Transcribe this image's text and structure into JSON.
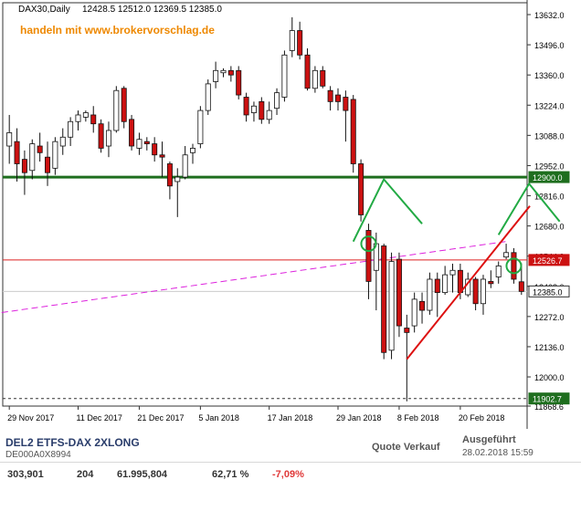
{
  "header": {
    "instrument": "DAX30,Daily",
    "ohlc": "12428.5 12512.0 12369.5 12385.0",
    "watermark": "handeln mit www.brokervorschlag.de"
  },
  "chart_data": {
    "type": "candlestick",
    "ylim": [
      11868.6,
      13700
    ],
    "y_ticks": [
      "13632.0",
      "13496.0",
      "13360.0",
      "13224.0",
      "13088.0",
      "12952.0",
      "12816.0",
      "12680.0",
      "12544.0",
      "12408.0",
      "12272.0",
      "12136.0",
      "12000.0",
      "11868.6"
    ],
    "x_tick_labels": [
      {
        "i": 0,
        "label": "29 Nov 2017"
      },
      {
        "i": 9,
        "label": "11 Dec 2017"
      },
      {
        "i": 17,
        "label": "21 Dec 2017"
      },
      {
        "i": 25,
        "label": "5 Jan 2018"
      },
      {
        "i": 34,
        "label": "17 Jan 2018"
      },
      {
        "i": 43,
        "label": "29 Jan 2018"
      },
      {
        "i": 51,
        "label": "8 Feb 2018"
      },
      {
        "i": 59,
        "label": "20 Feb 2018"
      }
    ],
    "price_labels": [
      {
        "value": 12900.0,
        "text": "12900.0",
        "bg": "#1e6e1e"
      },
      {
        "value": 12526.7,
        "text": "12526.7",
        "bg": "#cc1111"
      },
      {
        "value": 12385.0,
        "text": "12385.0",
        "bg": "#ffffff"
      },
      {
        "value": 11902.7,
        "text": "11902.7",
        "bg": "#1e6e1e"
      }
    ],
    "candles": [
      {
        "o": 13040,
        "h": 13180,
        "l": 12960,
        "c": 13100
      },
      {
        "o": 13060,
        "h": 13120,
        "l": 12880,
        "c": 12960
      },
      {
        "o": 12980,
        "h": 13020,
        "l": 12820,
        "c": 12920
      },
      {
        "o": 12930,
        "h": 13070,
        "l": 12890,
        "c": 13050
      },
      {
        "o": 13040,
        "h": 13100,
        "l": 12970,
        "c": 13010
      },
      {
        "o": 12990,
        "h": 13060,
        "l": 12860,
        "c": 12920
      },
      {
        "o": 12940,
        "h": 13080,
        "l": 12910,
        "c": 13060
      },
      {
        "o": 13040,
        "h": 13120,
        "l": 13000,
        "c": 13080
      },
      {
        "o": 13080,
        "h": 13170,
        "l": 13040,
        "c": 13150
      },
      {
        "o": 13150,
        "h": 13200,
        "l": 13110,
        "c": 13180
      },
      {
        "o": 13170,
        "h": 13200,
        "l": 13150,
        "c": 13190
      },
      {
        "o": 13180,
        "h": 13220,
        "l": 13100,
        "c": 13140
      },
      {
        "o": 13140,
        "h": 13160,
        "l": 13010,
        "c": 13030
      },
      {
        "o": 13040,
        "h": 13150,
        "l": 12990,
        "c": 13110
      },
      {
        "o": 13110,
        "h": 13310,
        "l": 13100,
        "c": 13290
      },
      {
        "o": 13300,
        "h": 13310,
        "l": 13120,
        "c": 13150
      },
      {
        "o": 13160,
        "h": 13180,
        "l": 13020,
        "c": 13040
      },
      {
        "o": 13030,
        "h": 13100,
        "l": 13000,
        "c": 13070
      },
      {
        "o": 13060,
        "h": 13080,
        "l": 13020,
        "c": 13050
      },
      {
        "o": 13050,
        "h": 13080,
        "l": 12970,
        "c": 13000
      },
      {
        "o": 13000,
        "h": 13060,
        "l": 12900,
        "c": 12990
      },
      {
        "o": 12960,
        "h": 12970,
        "l": 12800,
        "c": 12860
      },
      {
        "o": 12880,
        "h": 12940,
        "l": 12720,
        "c": 12900
      },
      {
        "o": 12900,
        "h": 13040,
        "l": 12890,
        "c": 13000
      },
      {
        "o": 13010,
        "h": 13050,
        "l": 12960,
        "c": 13030
      },
      {
        "o": 13050,
        "h": 13220,
        "l": 13030,
        "c": 13200
      },
      {
        "o": 13200,
        "h": 13340,
        "l": 13180,
        "c": 13320
      },
      {
        "o": 13330,
        "h": 13420,
        "l": 13300,
        "c": 13380
      },
      {
        "o": 13370,
        "h": 13390,
        "l": 13350,
        "c": 13380
      },
      {
        "o": 13380,
        "h": 13400,
        "l": 13330,
        "c": 13360
      },
      {
        "o": 13380,
        "h": 13400,
        "l": 13250,
        "c": 13270
      },
      {
        "o": 13260,
        "h": 13280,
        "l": 13150,
        "c": 13180
      },
      {
        "o": 13190,
        "h": 13240,
        "l": 13150,
        "c": 13220
      },
      {
        "o": 13240,
        "h": 13260,
        "l": 13140,
        "c": 13160
      },
      {
        "o": 13160,
        "h": 13240,
        "l": 13140,
        "c": 13200
      },
      {
        "o": 13210,
        "h": 13300,
        "l": 13180,
        "c": 13280
      },
      {
        "o": 13260,
        "h": 13470,
        "l": 13240,
        "c": 13450
      },
      {
        "o": 13470,
        "h": 13620,
        "l": 13440,
        "c": 13560
      },
      {
        "o": 13560,
        "h": 13600,
        "l": 13430,
        "c": 13450
      },
      {
        "o": 13450,
        "h": 13480,
        "l": 13290,
        "c": 13300
      },
      {
        "o": 13300,
        "h": 13400,
        "l": 13280,
        "c": 13380
      },
      {
        "o": 13380,
        "h": 13400,
        "l": 13300,
        "c": 13310
      },
      {
        "o": 13290,
        "h": 13310,
        "l": 13200,
        "c": 13240
      },
      {
        "o": 13270,
        "h": 13300,
        "l": 13200,
        "c": 13240
      },
      {
        "o": 13260,
        "h": 13290,
        "l": 13060,
        "c": 13200
      },
      {
        "o": 13250,
        "h": 13270,
        "l": 12920,
        "c": 12960
      },
      {
        "o": 12960,
        "h": 12980,
        "l": 12700,
        "c": 12730
      },
      {
        "o": 12660,
        "h": 12690,
        "l": 12350,
        "c": 12430
      },
      {
        "o": 12480,
        "h": 12650,
        "l": 12300,
        "c": 12600
      },
      {
        "o": 12590,
        "h": 12600,
        "l": 12080,
        "c": 12110
      },
      {
        "o": 12120,
        "h": 12560,
        "l": 12080,
        "c": 12520
      },
      {
        "o": 12530,
        "h": 12560,
        "l": 12180,
        "c": 12230
      },
      {
        "o": 12220,
        "h": 12280,
        "l": 11890,
        "c": 12200
      },
      {
        "o": 12230,
        "h": 12380,
        "l": 12200,
        "c": 12350
      },
      {
        "o": 12340,
        "h": 12380,
        "l": 12240,
        "c": 12300
      },
      {
        "o": 12300,
        "h": 12470,
        "l": 12280,
        "c": 12440
      },
      {
        "o": 12440,
        "h": 12470,
        "l": 12270,
        "c": 12380
      },
      {
        "o": 12380,
        "h": 12500,
        "l": 12370,
        "c": 12460
      },
      {
        "o": 12460,
        "h": 12510,
        "l": 12380,
        "c": 12480
      },
      {
        "o": 12480,
        "h": 12510,
        "l": 12350,
        "c": 12380
      },
      {
        "o": 12370,
        "h": 12470,
        "l": 12360,
        "c": 12440
      },
      {
        "o": 12440,
        "h": 12450,
        "l": 12300,
        "c": 12330
      },
      {
        "o": 12330,
        "h": 12460,
        "l": 12280,
        "c": 12440
      },
      {
        "o": 12430,
        "h": 12480,
        "l": 12400,
        "c": 12420
      },
      {
        "o": 12450,
        "h": 12520,
        "l": 12420,
        "c": 12500
      },
      {
        "o": 12540,
        "h": 12600,
        "l": 12530,
        "c": 12560
      },
      {
        "o": 12560,
        "h": 12580,
        "l": 12420,
        "c": 12440
      },
      {
        "o": 12428.5,
        "h": 12512.0,
        "l": 12369.5,
        "c": 12385.0
      }
    ]
  },
  "info": {
    "name": "DEL2 ETFS-DAX 2XLONG",
    "isin": "DE000A0X8994",
    "quote_label": "Quote Verkauf",
    "executed_label": "Ausgeführt",
    "executed_time": "28.02.2018 15:59",
    "price": "303,901",
    "quantity": "204",
    "amount": "61.995,804",
    "percent": "62,71 %",
    "change": "-7,09%"
  },
  "colors": {
    "bull": "#ffffff",
    "bear": "#cc1111",
    "support": "#1e6e1e",
    "resistance": "#dd2222",
    "ma": "#dd22dd",
    "trend": "#dd1111",
    "pattern": "#22aa44"
  }
}
